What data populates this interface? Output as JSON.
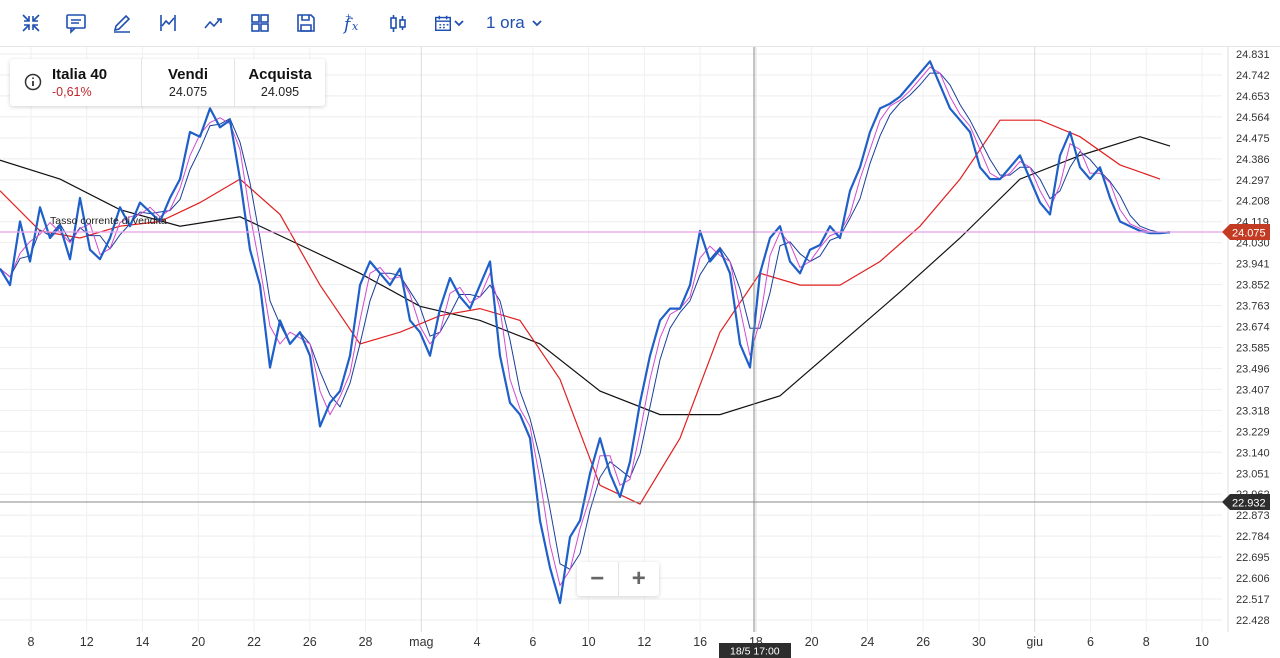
{
  "toolbar": {
    "icons": [
      "collapse-icon",
      "chat-icon",
      "pencil-icon",
      "indicator-icon",
      "trend-icon",
      "grid-layout-icon",
      "save-icon",
      "function-icon",
      "candlestick-icon",
      "calendar-icon"
    ],
    "timeframe": "1 ora"
  },
  "instrument": {
    "name": "Italia 40",
    "change": "-0,61%",
    "change_color": "#c0262d",
    "sell_label": "Vendi",
    "sell_value": "24.075",
    "buy_label": "Acquista",
    "buy_value": "24.095"
  },
  "chart_overlay": {
    "current_rate_label": "Tasso corrente di vendita",
    "current_price_tag": "24.075",
    "current_price_color": "#c23b22",
    "crosshair_price_tag": "22.932",
    "crosshair_time_tag": "18/5 17:00"
  },
  "zoom": {
    "minus": "−",
    "plus": "+"
  },
  "chart_data": {
    "type": "line",
    "ylim": [
      22.428,
      24.831
    ],
    "y_ticks": [
      "24.831",
      "24.742",
      "24.653",
      "24.564",
      "24.475",
      "24.386",
      "24.297",
      "24.208",
      "24.119",
      "24.030",
      "23.941",
      "23.852",
      "23.763",
      "23.674",
      "23.585",
      "23.496",
      "23.407",
      "23.318",
      "23.229",
      "23.140",
      "23.051",
      "22.962",
      "22.873",
      "22.784",
      "22.695",
      "22.606",
      "22.517",
      "22.428"
    ],
    "x_ticks": [
      "8",
      "12",
      "14",
      "20",
      "22",
      "26",
      "28",
      "mag",
      "4",
      "6",
      "10",
      "12",
      "16",
      "18",
      "20",
      "24",
      "26",
      "30",
      "giu",
      "6",
      "8",
      "10"
    ],
    "current_price": 24.075,
    "crosshair_price": 22.932,
    "colors": {
      "price": "#1f5fc8",
      "ma_fast": "#d14bd0",
      "ma_mid": "#e02020",
      "ma_slow": "#111111",
      "ma_blue": "#1a3f9a",
      "current_line": "#e8a0e8"
    },
    "series": [
      {
        "x": [
          0,
          10,
          20,
          30,
          40,
          50,
          60,
          70,
          80,
          90,
          100,
          110,
          120,
          130,
          140,
          150,
          160,
          170,
          180,
          190,
          200,
          210,
          220,
          230,
          240,
          250,
          260,
          270,
          280,
          290,
          300,
          310,
          320,
          330,
          340,
          350,
          360,
          370,
          380,
          390,
          400,
          410,
          420,
          430,
          440,
          450,
          460,
          470,
          480,
          490,
          500,
          510,
          520,
          530,
          540,
          550,
          560,
          570,
          580,
          590,
          600,
          610,
          620,
          630,
          640,
          650,
          660,
          670,
          680,
          690,
          700,
          710,
          720,
          730,
          740,
          750,
          760,
          770,
          780,
          790,
          800,
          810,
          820,
          830,
          840,
          850,
          860,
          870,
          880,
          890,
          900,
          910,
          920,
          930,
          940,
          950,
          960,
          970,
          980,
          990,
          1000,
          1010,
          1020,
          1030,
          1040,
          1050,
          1060,
          1070,
          1080,
          1090,
          1100,
          1110,
          1120,
          1130,
          1140,
          1150,
          1160,
          1170
        ],
        "values": [
          23.92,
          23.85,
          24.12,
          23.95,
          24.18,
          24.05,
          24.1,
          23.96,
          24.22,
          24.0,
          23.96,
          24.05,
          24.18,
          24.1,
          24.2,
          24.16,
          24.12,
          24.22,
          24.3,
          24.5,
          24.48,
          24.6,
          24.52,
          24.55,
          24.3,
          24.0,
          23.85,
          23.5,
          23.7,
          23.6,
          23.65,
          23.55,
          23.25,
          23.35,
          23.4,
          23.55,
          23.85,
          23.95,
          23.9,
          23.85,
          23.92,
          23.7,
          23.65,
          23.55,
          23.75,
          23.88,
          23.8,
          23.75,
          23.85,
          23.95,
          23.55,
          23.35,
          23.3,
          23.2,
          22.85,
          22.65,
          22.5,
          22.78,
          22.85,
          23.05,
          23.2,
          23.05,
          22.95,
          23.1,
          23.35,
          23.55,
          23.7,
          23.75,
          23.75,
          23.85,
          24.08,
          23.95,
          24.0,
          23.9,
          23.6,
          23.5,
          23.9,
          24.05,
          24.1,
          23.95,
          23.9,
          24.0,
          24.02,
          24.1,
          24.05,
          24.25,
          24.35,
          24.5,
          24.6,
          24.62,
          24.65,
          24.7,
          24.75,
          24.8,
          24.7,
          24.6,
          24.55,
          24.5,
          24.35,
          24.3,
          24.3,
          24.35,
          24.4,
          24.3,
          24.2,
          24.15,
          24.4,
          24.5,
          24.35,
          24.3,
          24.35,
          24.22,
          24.12,
          24.1,
          24.08,
          24.07,
          24.07,
          24.075
        ]
      },
      {
        "name": "ma_mid",
        "x": [
          0,
          40,
          80,
          120,
          160,
          200,
          240,
          280,
          320,
          360,
          400,
          440,
          480,
          520,
          560,
          600,
          640,
          680,
          720,
          760,
          800,
          840,
          880,
          920,
          960,
          1000,
          1040,
          1080,
          1120,
          1160
        ],
        "values": [
          24.25,
          24.08,
          24.05,
          24.1,
          24.12,
          24.2,
          24.3,
          24.15,
          23.85,
          23.6,
          23.65,
          23.72,
          23.75,
          23.7,
          23.45,
          23.0,
          22.92,
          23.2,
          23.65,
          23.9,
          23.85,
          23.85,
          23.95,
          24.1,
          24.3,
          24.55,
          24.55,
          24.48,
          24.36,
          24.3
        ]
      },
      {
        "name": "ma_slow",
        "x": [
          0,
          60,
          120,
          180,
          240,
          300,
          360,
          420,
          480,
          540,
          600,
          660,
          720,
          780,
          840,
          900,
          960,
          1020,
          1080,
          1140,
          1170
        ],
        "values": [
          24.38,
          24.3,
          24.17,
          24.1,
          24.14,
          24.02,
          23.9,
          23.76,
          23.7,
          23.6,
          23.4,
          23.3,
          23.3,
          23.38,
          23.6,
          23.82,
          24.05,
          24.3,
          24.4,
          24.48,
          24.44
        ]
      }
    ]
  }
}
